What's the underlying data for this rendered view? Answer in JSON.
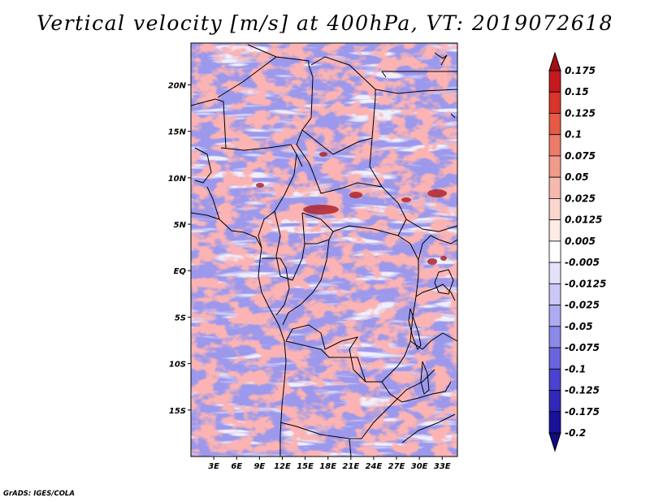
{
  "title": "Vertical velocity [m/s] at 400hPa, VT: 2019072618",
  "footer": "GrADS: IGES/COLA",
  "map": {
    "lon_range": [
      0,
      35
    ],
    "lat_range": [
      -20,
      24.5
    ],
    "lon_ticks": [
      "3E",
      "6E",
      "9E",
      "12E",
      "15E",
      "18E",
      "21E",
      "24E",
      "27E",
      "30E",
      "33E"
    ],
    "lat_ticks": [
      "20N",
      "15N",
      "10N",
      "5N",
      "EQ",
      "5S",
      "10S",
      "15S"
    ]
  },
  "colorbar": {
    "labels": [
      "0.175",
      "0.15",
      "0.125",
      "0.1",
      "0.075",
      "0.05",
      "0.025",
      "0.0125",
      "0.005",
      "-0.005",
      "-0.0125",
      "-0.025",
      "-0.05",
      "-0.075",
      "-0.1",
      "-0.125",
      "-0.175",
      "-0.2"
    ],
    "colors": [
      "#a50f15",
      "#c41a1f",
      "#d9352b",
      "#e45a45",
      "#ec7b68",
      "#f29a8b",
      "#f7b9ad",
      "#fbd6cd",
      "#fdebe6",
      "#ffffff",
      "#e4e2fb",
      "#cbc8f7",
      "#aeabf1",
      "#8d89ea",
      "#6a65df",
      "#4a43cf",
      "#2f28b8",
      "#1a129b",
      "#110a80"
    ]
  },
  "colors": {
    "positive": "#e88a82",
    "negative": "#8f8ae8",
    "border": "#000000"
  }
}
